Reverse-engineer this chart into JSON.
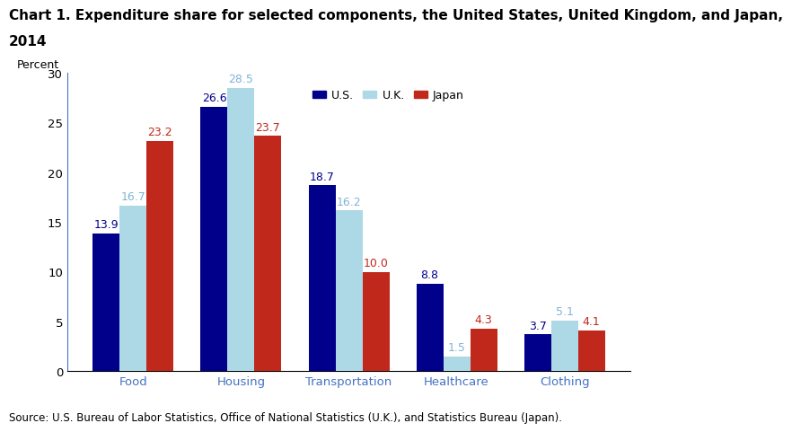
{
  "title_line1": "Chart 1. Expenditure share for selected components, the United States, United Kingdom, and Japan,",
  "title_line2": "2014",
  "ylabel": "Percent",
  "source": "Source: U.S. Bureau of Labor Statistics, Office of National Statistics (U.K.), and Statistics Bureau (Japan).",
  "categories": [
    "Food",
    "Housing",
    "Transportation",
    "Healthcare",
    "Clothing"
  ],
  "series": {
    "U.S.": [
      13.9,
      26.6,
      18.7,
      8.8,
      3.7
    ],
    "U.K.": [
      16.7,
      28.5,
      16.2,
      1.5,
      5.1
    ],
    "Japan": [
      23.2,
      23.7,
      10.0,
      4.3,
      4.1
    ]
  },
  "colors": {
    "U.S.": "#00008B",
    "U.K.": "#ADD8E6",
    "Japan": "#C0281C"
  },
  "label_colors": {
    "U.S.": "#00008B",
    "U.K.": "#7FB4D8",
    "Japan": "#C0281C"
  },
  "legend_labels": [
    "U.S.",
    "U.K.",
    "Japan"
  ],
  "ylim": [
    0,
    30
  ],
  "yticks": [
    0,
    5,
    10,
    15,
    20,
    25,
    30
  ],
  "bar_width": 0.25,
  "title_fontsize": 11,
  "label_fontsize": 9,
  "tick_fontsize": 9.5,
  "source_fontsize": 8.5,
  "legend_fontsize": 9,
  "cat_color": "#4472C4",
  "spine_color": "#4472C4"
}
